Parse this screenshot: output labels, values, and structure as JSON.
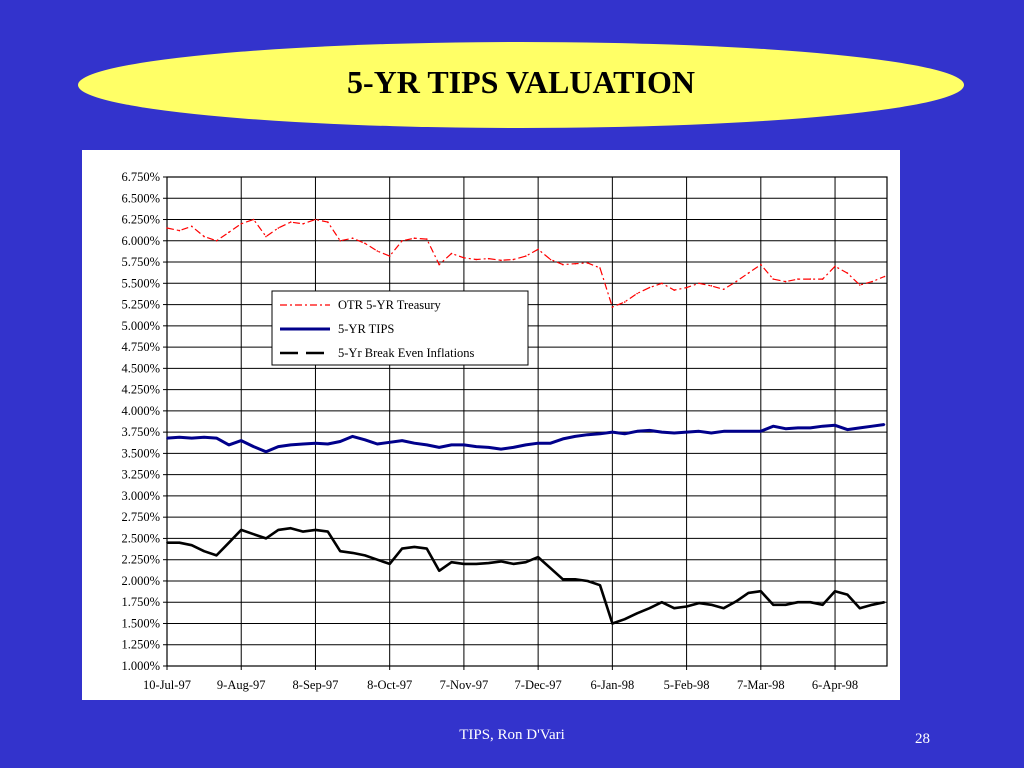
{
  "slide": {
    "title": "5-YR TIPS VALUATION",
    "footer": "TIPS, Ron D'Vari",
    "page_number": "28",
    "background_color": "#3333cc",
    "title_fill": "#ffff66"
  },
  "chart_data": {
    "type": "line",
    "title": "",
    "xlabel": "",
    "ylabel": "",
    "ylim": [
      1.0,
      6.75
    ],
    "y_ticks": [
      "6.750%",
      "6.500%",
      "6.250%",
      "6.000%",
      "5.750%",
      "5.500%",
      "5.250%",
      "5.000%",
      "4.750%",
      "4.500%",
      "4.250%",
      "4.000%",
      "3.750%",
      "3.500%",
      "3.250%",
      "3.000%",
      "2.750%",
      "2.500%",
      "2.250%",
      "2.000%",
      "1.750%",
      "1.500%",
      "1.250%",
      "1.000%"
    ],
    "y_tick_values": [
      6.75,
      6.5,
      6.25,
      6.0,
      5.75,
      5.5,
      5.25,
      5.0,
      4.75,
      4.5,
      4.25,
      4.0,
      3.75,
      3.5,
      3.25,
      3.0,
      2.75,
      2.5,
      2.25,
      2.0,
      1.75,
      1.5,
      1.25,
      1.0
    ],
    "x_ticks": [
      "10-Jul-97",
      "9-Aug-97",
      "8-Sep-97",
      "8-Oct-97",
      "7-Nov-97",
      "7-Dec-97",
      "6-Jan-98",
      "5-Feb-98",
      "7-Mar-98",
      "6-Apr-98"
    ],
    "x_range": [
      "10-Jul-97",
      "27-Apr-98"
    ],
    "grid": true,
    "legend_position": "center-left",
    "series": [
      {
        "name": "OTR 5-YR Treasury",
        "color": "#ff0000",
        "style": "dash-dot",
        "x": [
          "10-Jul-97",
          "15-Jul-97",
          "20-Jul-97",
          "25-Jul-97",
          "30-Jul-97",
          "4-Aug-97",
          "9-Aug-97",
          "14-Aug-97",
          "19-Aug-97",
          "24-Aug-97",
          "29-Aug-97",
          "3-Sep-97",
          "8-Sep-97",
          "13-Sep-97",
          "18-Sep-97",
          "23-Sep-97",
          "28-Sep-97",
          "3-Oct-97",
          "8-Oct-97",
          "13-Oct-97",
          "18-Oct-97",
          "23-Oct-97",
          "28-Oct-97",
          "2-Nov-97",
          "7-Nov-97",
          "12-Nov-97",
          "17-Nov-97",
          "22-Nov-97",
          "27-Nov-97",
          "2-Dec-97",
          "7-Dec-97",
          "12-Dec-97",
          "17-Dec-97",
          "22-Dec-97",
          "27-Dec-97",
          "1-Jan-98",
          "6-Jan-98",
          "11-Jan-98",
          "16-Jan-98",
          "21-Jan-98",
          "26-Jan-98",
          "31-Jan-98",
          "5-Feb-98",
          "10-Feb-98",
          "15-Feb-98",
          "20-Feb-98",
          "25-Feb-98",
          "2-Mar-98",
          "7-Mar-98",
          "12-Mar-98",
          "17-Mar-98",
          "22-Mar-98",
          "27-Mar-98",
          "1-Apr-98",
          "6-Apr-98",
          "11-Apr-98",
          "16-Apr-98",
          "21-Apr-98",
          "26-Apr-98"
        ],
        "values": [
          6.15,
          6.12,
          6.17,
          6.05,
          6.0,
          6.1,
          6.2,
          6.25,
          6.05,
          6.15,
          6.22,
          6.2,
          6.25,
          6.22,
          6.0,
          6.03,
          5.97,
          5.88,
          5.82,
          6.0,
          6.03,
          6.02,
          5.72,
          5.85,
          5.8,
          5.78,
          5.79,
          5.77,
          5.78,
          5.82,
          5.9,
          5.78,
          5.72,
          5.73,
          5.74,
          5.68,
          5.22,
          5.28,
          5.38,
          5.45,
          5.5,
          5.42,
          5.45,
          5.5,
          5.47,
          5.43,
          5.52,
          5.62,
          5.72,
          5.55,
          5.52,
          5.55,
          5.55,
          5.55,
          5.7,
          5.62,
          5.48,
          5.52,
          5.58
        ]
      },
      {
        "name": "5-YR TIPS",
        "color": "#00008b",
        "style": "solid",
        "x": [
          "10-Jul-97",
          "15-Jul-97",
          "20-Jul-97",
          "25-Jul-97",
          "30-Jul-97",
          "4-Aug-97",
          "9-Aug-97",
          "14-Aug-97",
          "19-Aug-97",
          "24-Aug-97",
          "29-Aug-97",
          "3-Sep-97",
          "8-Sep-97",
          "13-Sep-97",
          "18-Sep-97",
          "23-Sep-97",
          "28-Sep-97",
          "3-Oct-97",
          "8-Oct-97",
          "13-Oct-97",
          "18-Oct-97",
          "23-Oct-97",
          "28-Oct-97",
          "2-Nov-97",
          "7-Nov-97",
          "12-Nov-97",
          "17-Nov-97",
          "22-Nov-97",
          "27-Nov-97",
          "2-Dec-97",
          "7-Dec-97",
          "12-Dec-97",
          "17-Dec-97",
          "22-Dec-97",
          "27-Dec-97",
          "1-Jan-98",
          "6-Jan-98",
          "11-Jan-98",
          "16-Jan-98",
          "21-Jan-98",
          "26-Jan-98",
          "31-Jan-98",
          "5-Feb-98",
          "10-Feb-98",
          "15-Feb-98",
          "20-Feb-98",
          "25-Feb-98",
          "2-Mar-98",
          "7-Mar-98",
          "12-Mar-98",
          "17-Mar-98",
          "22-Mar-98",
          "27-Mar-98",
          "1-Apr-98",
          "6-Apr-98",
          "11-Apr-98",
          "16-Apr-98",
          "21-Apr-98",
          "26-Apr-98"
        ],
        "values": [
          3.68,
          3.69,
          3.68,
          3.69,
          3.68,
          3.6,
          3.65,
          3.58,
          3.52,
          3.58,
          3.6,
          3.61,
          3.62,
          3.61,
          3.64,
          3.7,
          3.66,
          3.61,
          3.63,
          3.65,
          3.62,
          3.6,
          3.57,
          3.6,
          3.6,
          3.58,
          3.57,
          3.55,
          3.57,
          3.6,
          3.62,
          3.62,
          3.67,
          3.7,
          3.72,
          3.73,
          3.75,
          3.73,
          3.76,
          3.77,
          3.75,
          3.74,
          3.75,
          3.76,
          3.74,
          3.76,
          3.76,
          3.76,
          3.76,
          3.82,
          3.79,
          3.8,
          3.8,
          3.82,
          3.83,
          3.78,
          3.8,
          3.82,
          3.84
        ]
      },
      {
        "name": "5-Yr Break Even Inflations",
        "color": "#000000",
        "style": "dashed",
        "x": [
          "10-Jul-97",
          "15-Jul-97",
          "20-Jul-97",
          "25-Jul-97",
          "30-Jul-97",
          "4-Aug-97",
          "9-Aug-97",
          "14-Aug-97",
          "19-Aug-97",
          "24-Aug-97",
          "29-Aug-97",
          "3-Sep-97",
          "8-Sep-97",
          "13-Sep-97",
          "18-Sep-97",
          "23-Sep-97",
          "28-Sep-97",
          "3-Oct-97",
          "8-Oct-97",
          "13-Oct-97",
          "18-Oct-97",
          "23-Oct-97",
          "28-Oct-97",
          "2-Nov-97",
          "7-Nov-97",
          "12-Nov-97",
          "17-Nov-97",
          "22-Nov-97",
          "27-Nov-97",
          "2-Dec-97",
          "7-Dec-97",
          "12-Dec-97",
          "17-Dec-97",
          "22-Dec-97",
          "27-Dec-97",
          "1-Jan-98",
          "6-Jan-98",
          "11-Jan-98",
          "16-Jan-98",
          "21-Jan-98",
          "26-Jan-98",
          "31-Jan-98",
          "5-Feb-98",
          "10-Feb-98",
          "15-Feb-98",
          "20-Feb-98",
          "25-Feb-98",
          "2-Mar-98",
          "7-Mar-98",
          "12-Mar-98",
          "17-Mar-98",
          "22-Mar-98",
          "27-Mar-98",
          "1-Apr-98",
          "6-Apr-98",
          "11-Apr-98",
          "16-Apr-98",
          "21-Apr-98",
          "26-Apr-98"
        ],
        "values": [
          2.45,
          2.45,
          2.42,
          2.35,
          2.3,
          2.45,
          2.6,
          2.55,
          2.5,
          2.6,
          2.62,
          2.58,
          2.6,
          2.58,
          2.35,
          2.33,
          2.3,
          2.25,
          2.2,
          2.38,
          2.4,
          2.38,
          2.12,
          2.22,
          2.2,
          2.2,
          2.21,
          2.23,
          2.2,
          2.22,
          2.28,
          2.15,
          2.02,
          2.02,
          2.0,
          1.95,
          1.5,
          1.55,
          1.62,
          1.68,
          1.75,
          1.68,
          1.7,
          1.74,
          1.72,
          1.68,
          1.76,
          1.86,
          1.88,
          1.72,
          1.72,
          1.75,
          1.75,
          1.72,
          1.88,
          1.84,
          1.68,
          1.72,
          1.75
        ]
      }
    ]
  }
}
